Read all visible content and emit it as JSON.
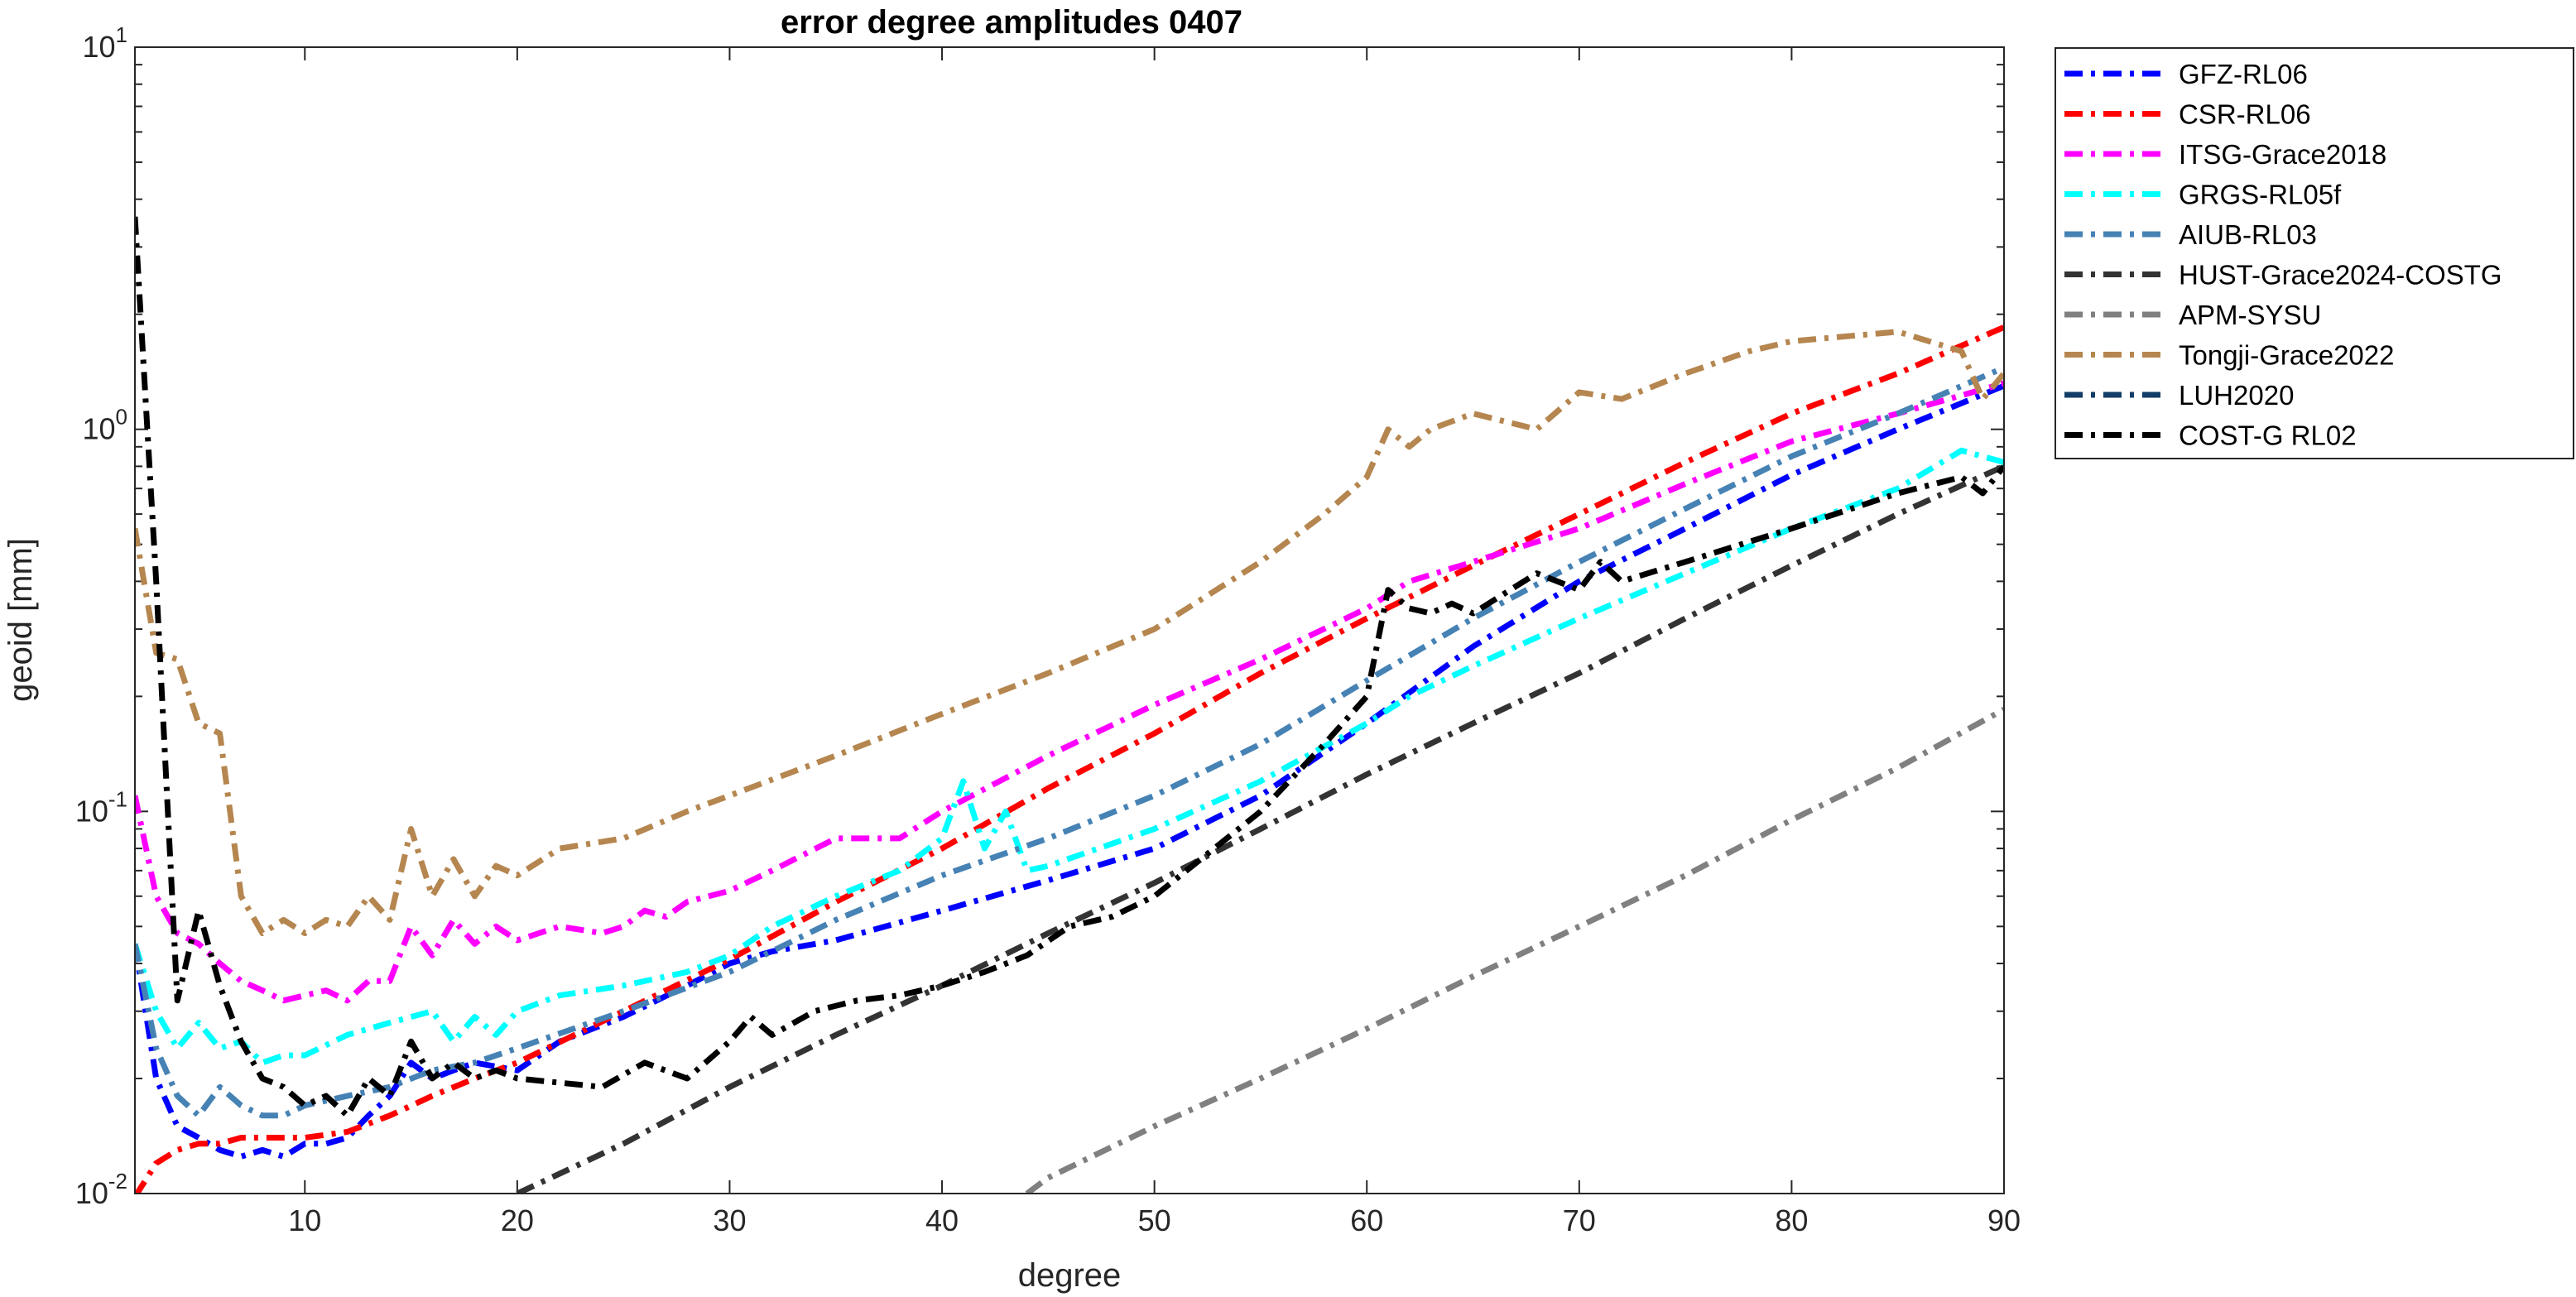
{
  "chart_data": {
    "type": "line",
    "title": "error degree amplitudes 0407",
    "xlabel": "degree",
    "ylabel": "geoid [mm]",
    "xlim": [
      2,
      90
    ],
    "ylim": [
      0.01,
      10
    ],
    "yscale": "log",
    "xticks": [
      10,
      20,
      30,
      40,
      50,
      60,
      70,
      80,
      90
    ],
    "yticks": [
      {
        "value": 0.01,
        "base": "10",
        "exp": "-2"
      },
      {
        "value": 0.1,
        "base": "10",
        "exp": "-1"
      },
      {
        "value": 1,
        "base": "10",
        "exp": "0"
      },
      {
        "value": 10,
        "base": "10",
        "exp": "1"
      }
    ],
    "grid": false,
    "legend_position": "outside-top-right",
    "series": [
      {
        "name": "GFZ-RL06",
        "color": "#0000ff",
        "dash": "dashdot",
        "x": [
          2,
          3,
          4,
          5,
          6,
          7,
          8,
          9,
          10,
          11,
          12,
          13,
          14,
          15,
          16,
          17,
          18,
          20,
          22,
          25,
          28,
          30,
          32,
          35,
          40,
          45,
          50,
          55,
          60,
          65,
          70,
          75,
          80,
          85,
          90
        ],
        "y": [
          0.045,
          0.02,
          0.015,
          0.014,
          0.013,
          0.0125,
          0.013,
          0.0125,
          0.0135,
          0.0135,
          0.014,
          0.016,
          0.018,
          0.022,
          0.02,
          0.021,
          0.022,
          0.021,
          0.025,
          0.029,
          0.035,
          0.04,
          0.043,
          0.046,
          0.055,
          0.066,
          0.08,
          0.11,
          0.17,
          0.27,
          0.4,
          0.55,
          0.76,
          1.0,
          1.3
        ]
      },
      {
        "name": "CSR-RL06",
        "color": "#ff0000",
        "dash": "dashdot",
        "x": [
          2,
          3,
          4,
          5,
          6,
          7,
          8,
          9,
          10,
          12,
          14,
          16,
          18,
          20,
          25,
          30,
          35,
          40,
          45,
          50,
          55,
          60,
          65,
          70,
          75,
          80,
          85,
          90
        ],
        "y": [
          0.0098,
          0.012,
          0.013,
          0.0135,
          0.0135,
          0.014,
          0.014,
          0.014,
          0.014,
          0.0145,
          0.016,
          0.018,
          0.02,
          0.022,
          0.03,
          0.041,
          0.058,
          0.08,
          0.115,
          0.16,
          0.23,
          0.32,
          0.44,
          0.6,
          0.82,
          1.1,
          1.4,
          1.85
        ]
      },
      {
        "name": "ITSG-Grace2018",
        "color": "#ff00ff",
        "dash": "dashdot",
        "x": [
          2,
          3,
          4,
          5,
          6,
          7,
          8,
          9,
          10,
          11,
          12,
          13,
          14,
          15,
          16,
          17,
          18,
          19,
          20,
          22,
          24,
          25,
          26,
          27,
          28,
          30,
          32,
          35,
          38,
          40,
          45,
          50,
          55,
          60,
          62,
          65,
          70,
          75,
          80,
          85,
          90
        ],
        "y": [
          0.11,
          0.06,
          0.048,
          0.045,
          0.04,
          0.036,
          0.034,
          0.032,
          0.033,
          0.034,
          0.032,
          0.036,
          0.036,
          0.05,
          0.042,
          0.052,
          0.045,
          0.05,
          0.046,
          0.05,
          0.048,
          0.05,
          0.055,
          0.053,
          0.058,
          0.062,
          0.07,
          0.085,
          0.085,
          0.1,
          0.14,
          0.19,
          0.25,
          0.34,
          0.4,
          0.45,
          0.55,
          0.72,
          0.93,
          1.1,
          1.32
        ]
      },
      {
        "name": "GRGS-RL05f",
        "color": "#00ffff",
        "dash": "dashdot",
        "x": [
          2,
          3,
          4,
          5,
          6,
          7,
          8,
          9,
          10,
          12,
          14,
          16,
          17,
          18,
          19,
          20,
          22,
          25,
          28,
          30,
          32,
          35,
          38,
          40,
          41,
          42,
          43,
          44,
          45,
          50,
          55,
          60,
          62,
          65,
          70,
          75,
          80,
          85,
          88,
          90
        ],
        "y": [
          0.045,
          0.03,
          0.024,
          0.028,
          0.024,
          0.025,
          0.022,
          0.023,
          0.023,
          0.026,
          0.028,
          0.03,
          0.025,
          0.029,
          0.026,
          0.03,
          0.033,
          0.035,
          0.038,
          0.042,
          0.05,
          0.06,
          0.07,
          0.085,
          0.12,
          0.08,
          0.1,
          0.07,
          0.072,
          0.09,
          0.12,
          0.17,
          0.2,
          0.24,
          0.32,
          0.42,
          0.55,
          0.7,
          0.88,
          0.82
        ]
      },
      {
        "name": "AIUB-RL03",
        "color": "#4682b4",
        "dash": "dashdot",
        "x": [
          2,
          3,
          4,
          5,
          6,
          7,
          8,
          9,
          10,
          12,
          14,
          16,
          18,
          20,
          25,
          30,
          35,
          40,
          45,
          50,
          55,
          60,
          65,
          70,
          75,
          80,
          85,
          90
        ],
        "y": [
          0.045,
          0.024,
          0.018,
          0.016,
          0.019,
          0.017,
          0.016,
          0.016,
          0.017,
          0.018,
          0.019,
          0.021,
          0.022,
          0.024,
          0.03,
          0.038,
          0.052,
          0.068,
          0.085,
          0.11,
          0.15,
          0.22,
          0.32,
          0.45,
          0.62,
          0.85,
          1.1,
          1.45
        ]
      },
      {
        "name": "HUST-Grace2024-COSTG",
        "color": "#333333",
        "dash": "dashdot",
        "x": [
          20,
          25,
          30,
          35,
          40,
          45,
          50,
          55,
          60,
          65,
          70,
          75,
          80,
          85,
          90
        ],
        "y": [
          0.01,
          0.0135,
          0.019,
          0.026,
          0.035,
          0.048,
          0.065,
          0.09,
          0.125,
          0.17,
          0.23,
          0.32,
          0.44,
          0.6,
          0.8
        ]
      },
      {
        "name": "APM-SYSU",
        "color": "#808080",
        "dash": "dashdot",
        "x": [
          44,
          45,
          50,
          55,
          60,
          65,
          70,
          75,
          80,
          85,
          90
        ],
        "y": [
          0.01,
          0.011,
          0.015,
          0.02,
          0.027,
          0.037,
          0.05,
          0.068,
          0.095,
          0.13,
          0.185
        ]
      },
      {
        "name": "Tongji-Grace2022",
        "color": "#b5864f",
        "dash": "dashdot",
        "x": [
          2,
          3,
          4,
          5,
          6,
          7,
          8,
          9,
          10,
          11,
          12,
          13,
          14,
          15,
          16,
          17,
          18,
          19,
          20,
          22,
          25,
          28,
          30,
          35,
          40,
          45,
          50,
          55,
          58,
          60,
          61,
          62,
          63,
          65,
          68,
          70,
          72,
          75,
          78,
          80,
          85,
          88,
          89,
          90
        ],
        "y": [
          0.55,
          0.26,
          0.25,
          0.17,
          0.16,
          0.06,
          0.048,
          0.052,
          0.048,
          0.052,
          0.05,
          0.06,
          0.052,
          0.09,
          0.06,
          0.075,
          0.06,
          0.072,
          0.068,
          0.08,
          0.085,
          0.1,
          0.11,
          0.14,
          0.18,
          0.23,
          0.3,
          0.45,
          0.6,
          0.75,
          1.0,
          0.9,
          1.0,
          1.1,
          1.0,
          1.25,
          1.2,
          1.4,
          1.6,
          1.7,
          1.8,
          1.6,
          1.2,
          1.4
        ]
      },
      {
        "name": "LUH2020",
        "color": "#123d66",
        "dash": "dashdot",
        "x": [],
        "y": []
      },
      {
        "name": "COST-G RL02",
        "color": "#000000",
        "dash": "dashdot",
        "x": [
          2,
          3,
          4,
          5,
          6,
          7,
          8,
          9,
          10,
          11,
          12,
          13,
          14,
          15,
          16,
          17,
          18,
          19,
          20,
          22,
          24,
          26,
          28,
          30,
          31,
          32,
          34,
          36,
          38,
          40,
          42,
          44,
          46,
          48,
          50,
          55,
          58,
          60,
          61,
          62,
          63,
          64,
          65,
          68,
          70,
          71,
          72,
          75,
          80,
          85,
          88,
          89,
          90
        ],
        "y": [
          3.6,
          0.4,
          0.032,
          0.055,
          0.035,
          0.025,
          0.02,
          0.019,
          0.017,
          0.018,
          0.016,
          0.02,
          0.018,
          0.025,
          0.02,
          0.022,
          0.02,
          0.021,
          0.02,
          0.0195,
          0.019,
          0.022,
          0.02,
          0.025,
          0.029,
          0.026,
          0.03,
          0.032,
          0.033,
          0.035,
          0.038,
          0.042,
          0.05,
          0.053,
          0.06,
          0.1,
          0.15,
          0.2,
          0.38,
          0.34,
          0.33,
          0.35,
          0.33,
          0.42,
          0.38,
          0.45,
          0.4,
          0.45,
          0.55,
          0.68,
          0.75,
          0.68,
          0.8
        ]
      }
    ]
  }
}
